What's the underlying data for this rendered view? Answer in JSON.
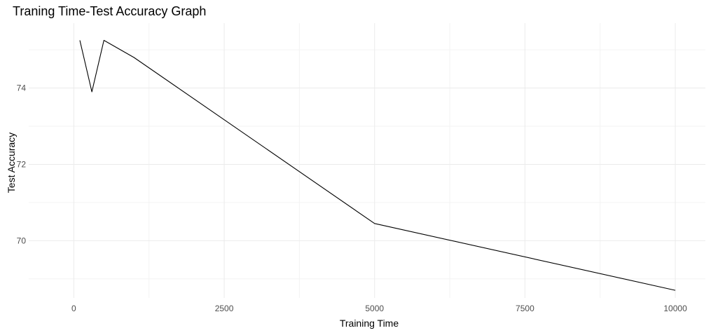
{
  "chart_data": {
    "type": "line",
    "title": "Traning Time-Test Accuracy Graph",
    "xlabel": "Training Time",
    "ylabel": "Test Accuracy",
    "xlim": [
      -750,
      10500
    ],
    "ylim": [
      68.5,
      75.7
    ],
    "x_ticks": [
      0,
      2500,
      5000,
      7500,
      10000
    ],
    "x_tick_labels": [
      "0",
      "2500",
      "5000",
      "7500",
      "10000"
    ],
    "x_minor_ticks": [
      1250,
      3750,
      6250,
      8750
    ],
    "y_ticks": [
      70,
      72,
      74
    ],
    "y_tick_labels": [
      "70",
      "72",
      "74"
    ],
    "y_minor_ticks": [
      69,
      71,
      73,
      75
    ],
    "grid": true,
    "legend": "none",
    "series": [
      {
        "color": "#000000",
        "x": [
          100,
          300,
          500,
          1000,
          5000,
          10000
        ],
        "y": [
          75.25,
          73.9,
          75.25,
          74.8,
          70.45,
          68.7
        ]
      }
    ]
  }
}
